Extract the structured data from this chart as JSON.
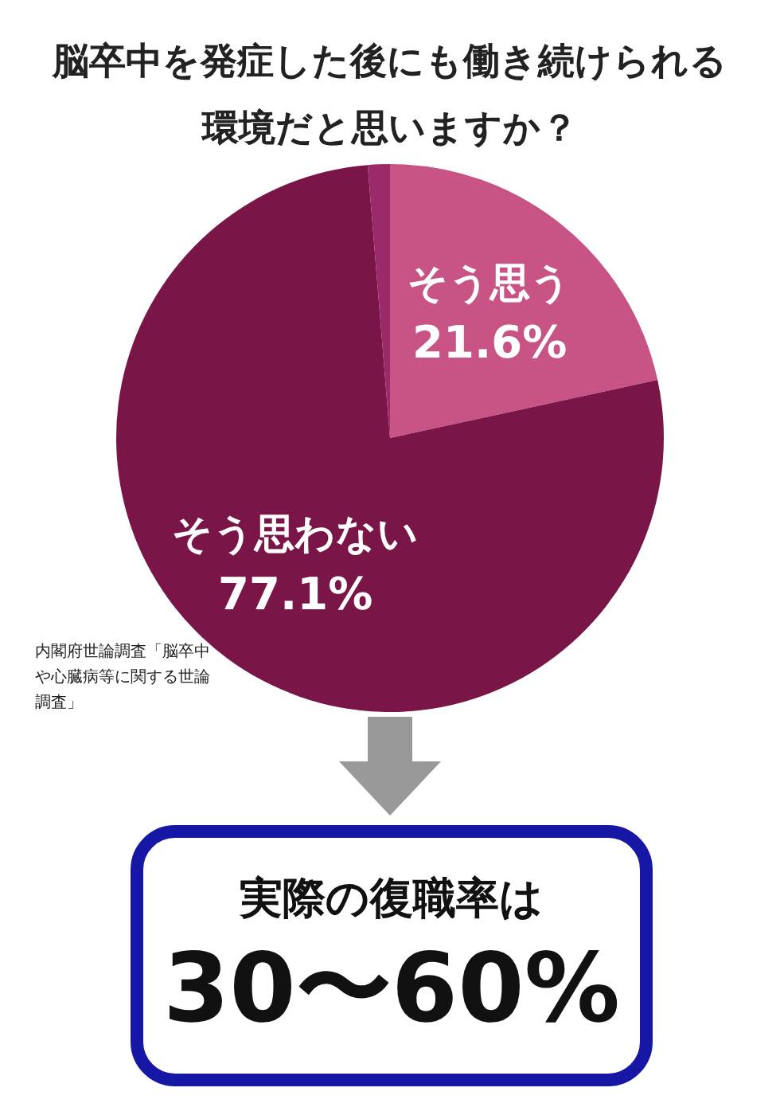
{
  "chart_data": {
    "type": "pie",
    "title": "脳卒中を発症した後にも働き続けられる環境だと思いますか？",
    "categories": [
      "そう思う",
      "そう思わない",
      null
    ],
    "values": [
      21.6,
      77.1,
      1.3
    ],
    "value_labels": [
      "21.6%",
      "77.1%",
      null
    ],
    "colors": [
      "#c85385",
      "#7a1548",
      "#9a2a6a"
    ],
    "legend": false,
    "annotations": [
      "内閣府世論調査「脳卒中や心臓病等に関する世論調査」",
      "実際の復職率は",
      "30〜60%"
    ]
  }
}
